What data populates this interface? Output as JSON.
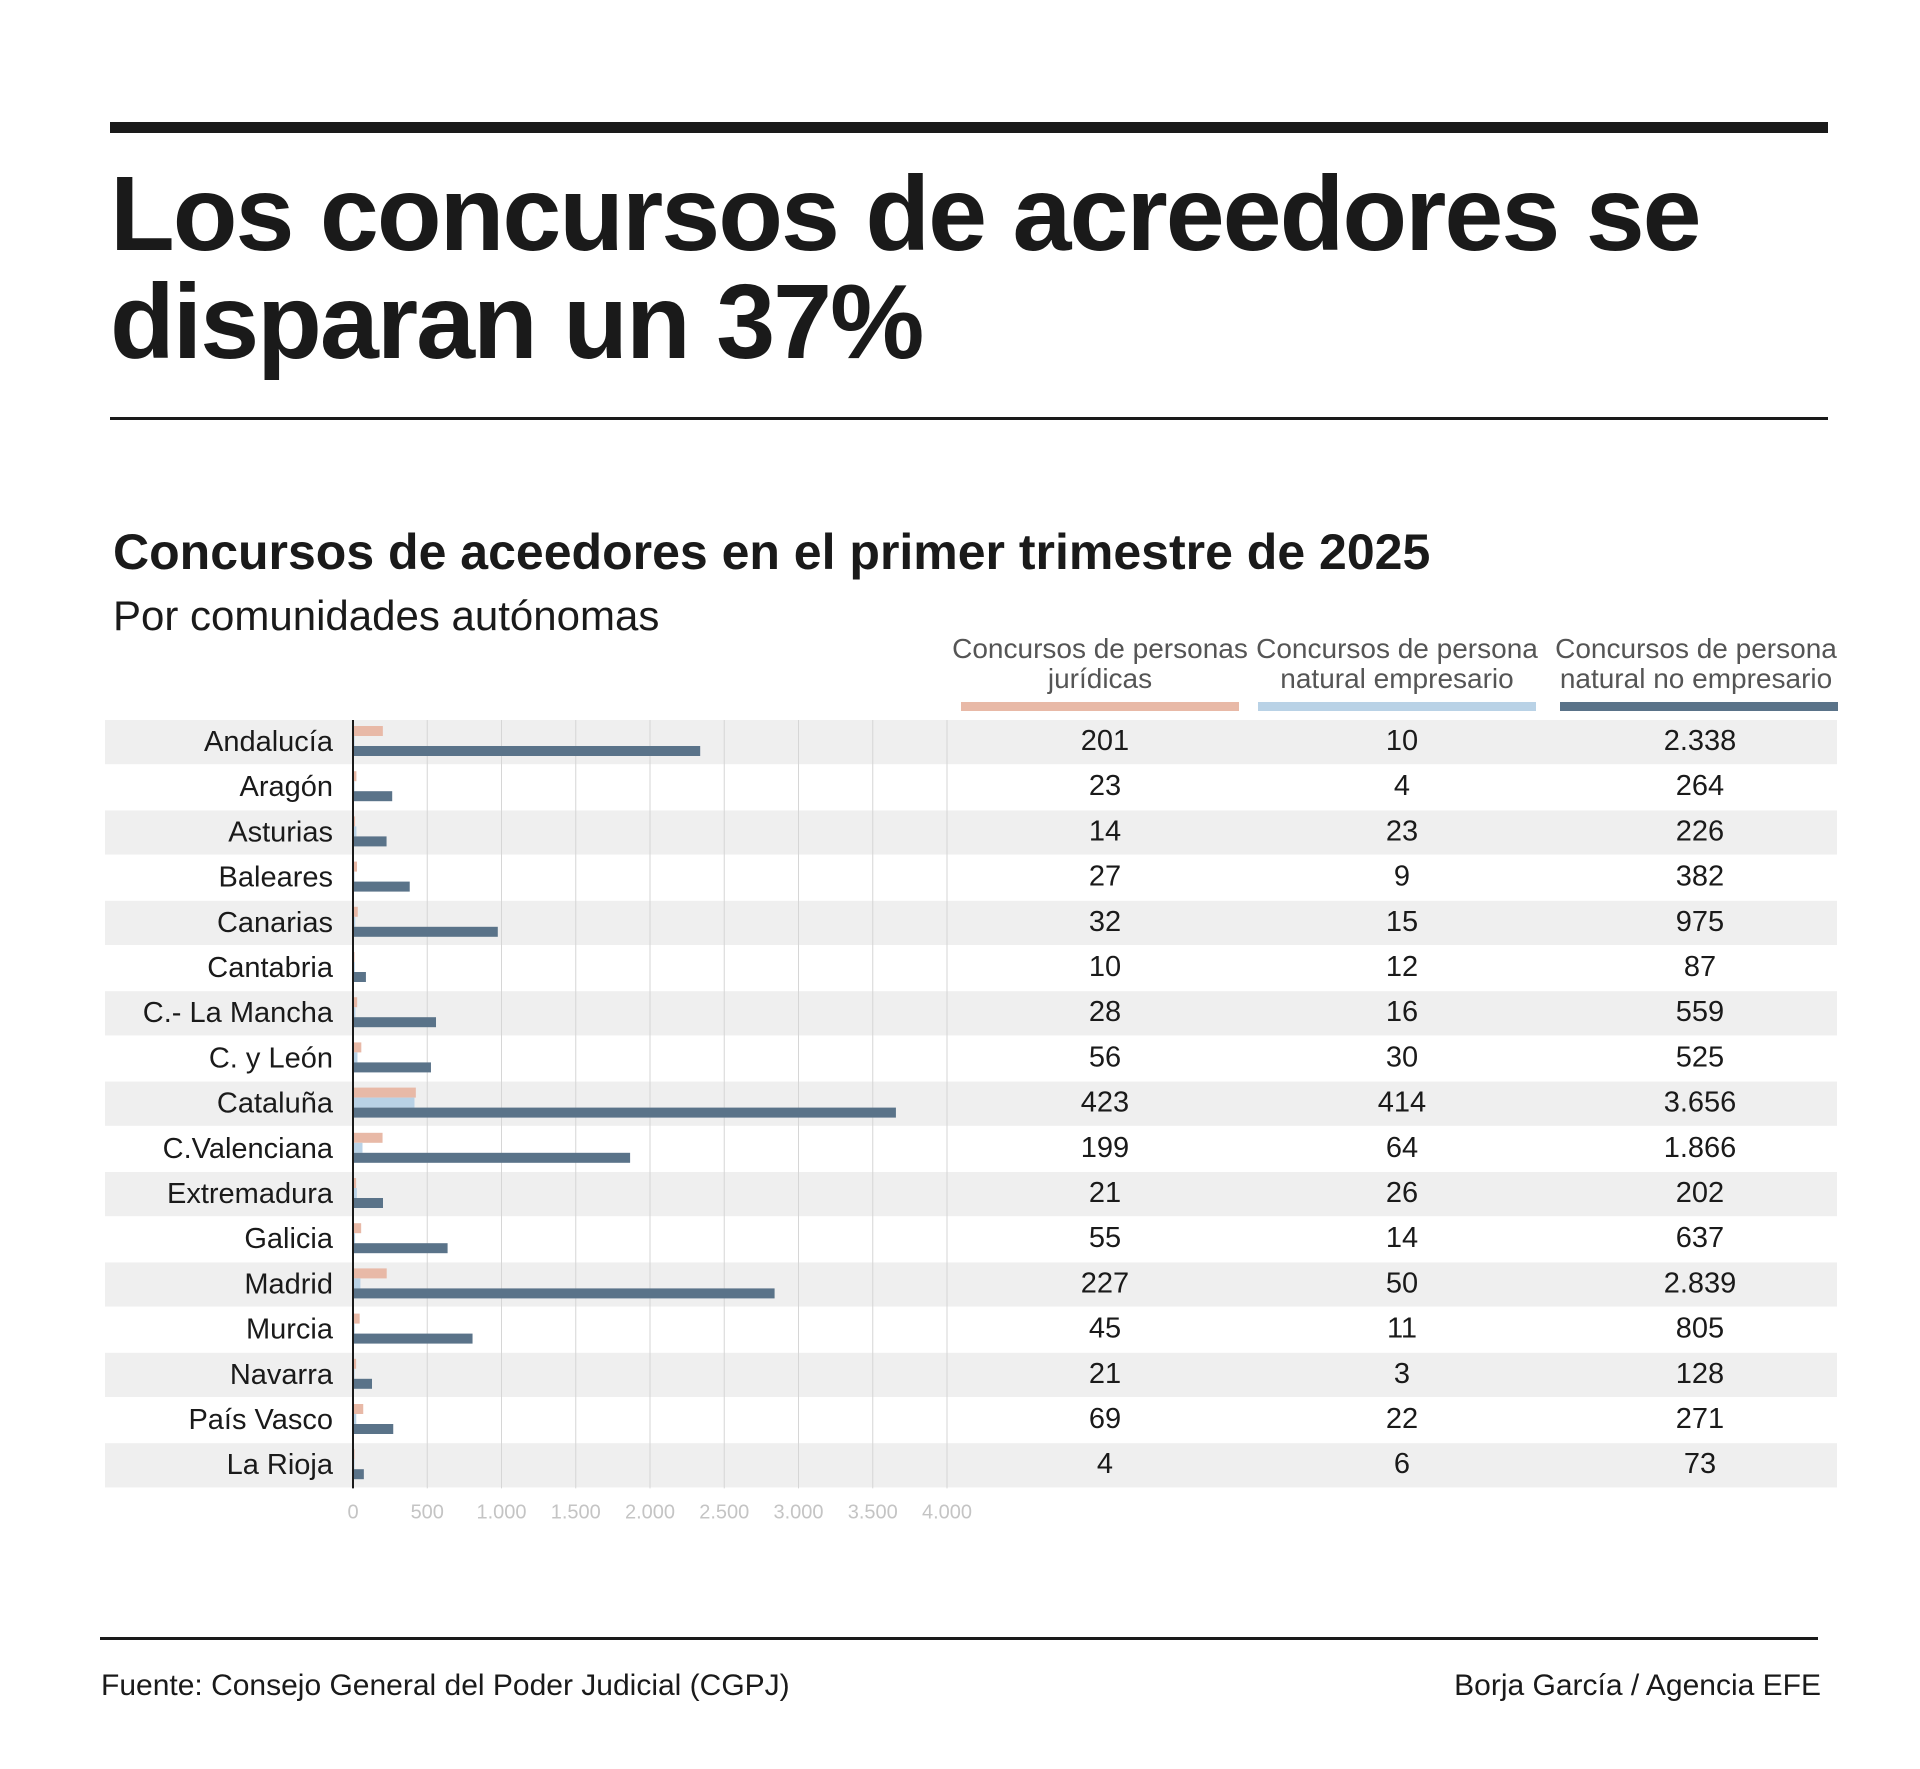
{
  "headline": "Los concursos de acreedores se disparan un 37%",
  "chart_data": {
    "type": "bar",
    "orientation": "horizontal",
    "title": "Concursos de aceedores en el primer trimestre de 2025",
    "subtitle": "Por comunidades autónomas",
    "categories": [
      "Andalucía",
      "Aragón",
      "Asturias",
      "Baleares",
      "Canarias",
      "Cantabria",
      "C.- La Mancha",
      "C. y León",
      "Cataluña",
      "C.Valenciana",
      "Extremadura",
      "Galicia",
      "Madrid",
      "Murcia",
      "Navarra",
      "País Vasco",
      "La Rioja"
    ],
    "series": [
      {
        "name": "Concursos de personas jurídicas",
        "color": "#e8b9a7",
        "values": [
          201,
          23,
          14,
          27,
          32,
          10,
          28,
          56,
          423,
          199,
          21,
          55,
          227,
          45,
          21,
          69,
          4
        ],
        "labels": [
          "201",
          "23",
          "14",
          "27",
          "32",
          "10",
          "28",
          "56",
          "423",
          "199",
          "21",
          "55",
          "227",
          "45",
          "21",
          "69",
          "4"
        ]
      },
      {
        "name": "Concursos de persona natural empresario",
        "color": "#b9d2e6",
        "values": [
          10,
          4,
          23,
          9,
          15,
          12,
          16,
          30,
          414,
          64,
          26,
          14,
          50,
          11,
          3,
          22,
          6
        ],
        "labels": [
          "10",
          "4",
          "23",
          "9",
          "15",
          "12",
          "16",
          "30",
          "414",
          "64",
          "26",
          "14",
          "50",
          "11",
          "3",
          "22",
          "6"
        ]
      },
      {
        "name": "Concursos de persona natural no empresario",
        "color": "#5a7389",
        "values": [
          2338,
          264,
          226,
          382,
          975,
          87,
          559,
          525,
          3656,
          1866,
          202,
          637,
          2839,
          805,
          128,
          271,
          73
        ],
        "labels": [
          "2.338",
          "264",
          "226",
          "382",
          "975",
          "87",
          "559",
          "525",
          "3.656",
          "1.866",
          "202",
          "637",
          "2.839",
          "805",
          "128",
          "271",
          "73"
        ]
      }
    ],
    "xlim": [
      0,
      4000
    ],
    "xticks": [
      0,
      500,
      1000,
      1500,
      2000,
      2500,
      3000,
      3500,
      4000
    ],
    "xtick_labels": [
      "0",
      "500",
      "1.000",
      "1.500",
      "2.000",
      "2.500",
      "3.000",
      "3.500",
      "4.000"
    ],
    "grid": true,
    "row_stripe_color": "#efefef"
  },
  "footer": {
    "source": "Fuente: Consejo General del Poder Judicial (CGPJ)",
    "credit": "Borja García / Agencia EFE"
  }
}
